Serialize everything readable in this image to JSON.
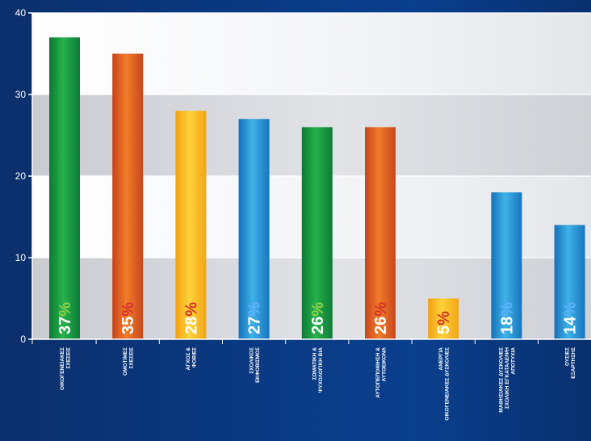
{
  "chart_data": {
    "type": "bar",
    "ylim": [
      0,
      40
    ],
    "yticks": [
      0,
      10,
      20,
      30,
      40
    ],
    "grid": true,
    "categories": [
      [
        "ΟΙΚΟΓΕΝΕΙΑΚΕΣ",
        "ΣΧΕΣΕΙΣ"
      ],
      [
        "ΟΜΟΤΙΜΕΣ",
        "ΣΧΕΣΕΙΣ"
      ],
      [
        "ΑΓΧΟΣ &",
        "ΦΟΒΙΕΣ"
      ],
      [
        "ΣΧΟΛΙΚΟΣ",
        "ΕΚΦΟΒΙΣΜΟΣ"
      ],
      [
        "ΣΩΜΑΤΙΚΗ &",
        "ΨΥΧΟΛΟΓΙΚΗ ΒΙΑ"
      ],
      [
        "ΑΥΤΟΠΕΠΟΙΘΗΣΗ &",
        "ΑΥΤΟΕΙΚΟΝΑ"
      ],
      [
        "ΑΝΕΡΓΙΑ",
        "ΟΙΚΟΓΕΝΕΙΑΚΕΣ ΔΥΣΚΟΛΙΕΣ"
      ],
      [
        "ΜΑΘΗΣΙΑΚΕΣ ΔΥΣΚΟΛΙΕΣ",
        "ΣΧΟΛΙΚΗ ΕΓΚΑΤΑΛΕΙΨΗ",
        "ΑΠΟΤΥΧΙΑ"
      ],
      [
        "ΟΥΣΙΕΣ",
        "ΕΞΑΡΤΗΣΗΣ"
      ]
    ],
    "values": [
      37,
      35,
      28,
      27,
      26,
      26,
      5,
      18,
      14
    ],
    "value_labels": [
      "37",
      "35",
      "28",
      "27",
      "26",
      "26",
      "5",
      "18",
      "14"
    ],
    "percent_sign": "%",
    "bar_colors": [
      "green",
      "orange",
      "yellow",
      "blue",
      "green",
      "orange",
      "yellow",
      "blue",
      "blue"
    ],
    "percent_colors": [
      "#8fd24a",
      "#d8322a",
      "#d8322a",
      "#5fb0ff",
      "#8fd24a",
      "#d8322a",
      "#d8322a",
      "#5fb0ff",
      "#5fb0ff"
    ]
  }
}
